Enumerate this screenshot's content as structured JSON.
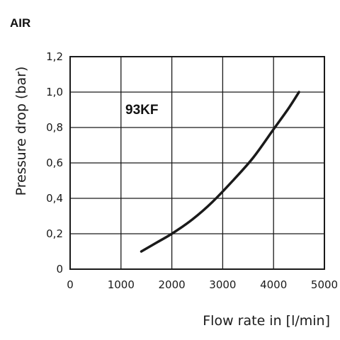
{
  "heading": "AIR",
  "chart_data": {
    "type": "line",
    "xlabel": "Flow rate in [l/min]",
    "ylabel": "Pressure drop (bar)",
    "xlim": [
      0,
      5000
    ],
    "ylim": [
      0,
      1.2
    ],
    "x_ticks": [
      "0",
      "1000",
      "2000",
      "3000",
      "4000",
      "5000"
    ],
    "y_ticks": [
      "0",
      "0,2",
      "0,4",
      "0,6",
      "0,8",
      "1,0",
      "1,2"
    ],
    "grid": true,
    "series": [
      {
        "name": "93KF",
        "color": "#1a1a1a",
        "x": [
          1400,
          1700,
          2000,
          2400,
          2800,
          3200,
          3600,
          4000,
          4300,
          4500
        ],
        "y": [
          0.1,
          0.15,
          0.2,
          0.28,
          0.38,
          0.5,
          0.63,
          0.79,
          0.91,
          1.0
        ]
      }
    ]
  }
}
